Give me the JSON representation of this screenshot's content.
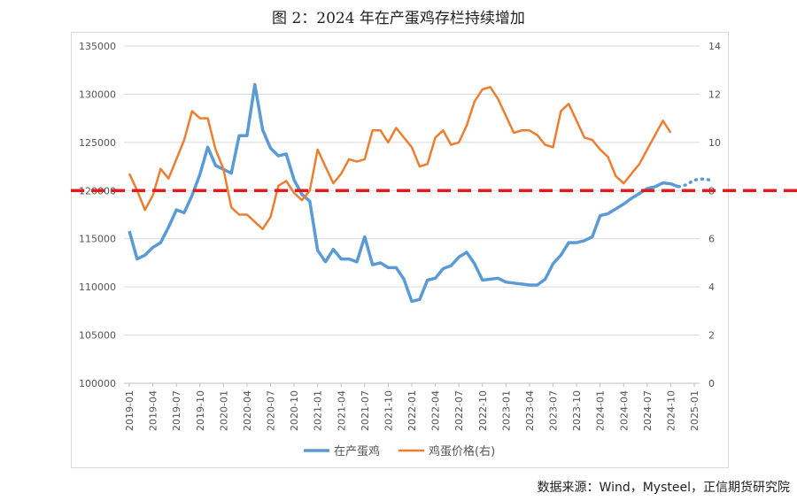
{
  "header": {
    "title": "图 2：2024 年在产蛋鸡存栏持续增加"
  },
  "footer": {
    "source": "数据来源：Wind，Mysteel，正信期货研究院"
  },
  "chart_data": {
    "type": "line",
    "title": "图 2：2024 年在产蛋鸡存栏持续增加",
    "x_tick_labels": [
      "2019-01",
      "2019-04",
      "2019-07",
      "2019-10",
      "2020-01",
      "2020-04",
      "2020-07",
      "2020-10",
      "2021-01",
      "2021-04",
      "2021-07",
      "2021-10",
      "2022-01",
      "2022-04",
      "2022-07",
      "2022-10",
      "2023-01",
      "2023-04",
      "2023-07",
      "2023-10",
      "2024-01",
      "2024-04",
      "2024-07",
      "2024-10",
      "2025-01"
    ],
    "y_left": {
      "ylim": [
        100000,
        135000
      ],
      "ticks": [
        "100000",
        "105000",
        "110000",
        "115000",
        "120000",
        "125000",
        "130000",
        "135000"
      ]
    },
    "y_right": {
      "ylim": [
        0,
        14
      ],
      "ticks": [
        "0",
        "2",
        "4",
        "6",
        "8",
        "10",
        "12",
        "14"
      ]
    },
    "reference_line": {
      "value": 120000,
      "axis": "left",
      "style": "dashed",
      "color": "#e41a1c"
    },
    "grid": true,
    "legend_position": "bottom",
    "series": [
      {
        "name": "在产蛋鸡",
        "axis": "left",
        "color": "#5b9bd5",
        "values": [
          115800,
          112900,
          113300,
          114100,
          114600,
          116200,
          118000,
          117700,
          119500,
          121700,
          124500,
          122600,
          122200,
          121800,
          125700,
          125700,
          131000,
          126300,
          124400,
          123600,
          123800,
          121100,
          119600,
          118900,
          113800,
          112600,
          113900,
          112900,
          112900,
          112600,
          115200,
          112300,
          112500,
          112000,
          112000,
          110800,
          108500,
          108700,
          110700,
          110900,
          111900,
          112200,
          113100,
          113600,
          112400,
          110700,
          110800,
          110900,
          110500,
          110400,
          110300,
          110200,
          110200,
          110800,
          112400,
          113300,
          114600,
          114600,
          114800,
          115200,
          117400,
          117600,
          118100,
          118600,
          119200,
          119700,
          120200,
          120400,
          120800,
          120700,
          120400
        ],
        "forecast_values": [
          120400,
          120600,
          121100,
          121200,
          121100
        ]
      },
      {
        "name": "鸡蛋价格(右)",
        "axis": "right",
        "color": "#ed7d31",
        "values": [
          8.7,
          8.0,
          7.2,
          7.8,
          8.9,
          8.5,
          9.3,
          10.1,
          11.3,
          11.0,
          11.0,
          9.7,
          8.9,
          7.3,
          7.0,
          7.0,
          6.7,
          6.4,
          6.9,
          8.2,
          8.4,
          7.9,
          7.6,
          8.0,
          9.7,
          9.0,
          8.3,
          8.7,
          9.3,
          9.2,
          9.3,
          10.5,
          10.5,
          10.0,
          10.6,
          10.2,
          9.8,
          9.0,
          9.1,
          10.2,
          10.5,
          9.9,
          10.0,
          10.7,
          11.7,
          12.2,
          12.3,
          11.8,
          11.1,
          10.4,
          10.5,
          10.5,
          10.3,
          9.9,
          9.8,
          11.3,
          11.6,
          10.9,
          10.2,
          10.1,
          9.7,
          9.4,
          8.6,
          8.3,
          8.7,
          9.1,
          9.7,
          10.3,
          10.9,
          10.4
        ]
      }
    ]
  }
}
